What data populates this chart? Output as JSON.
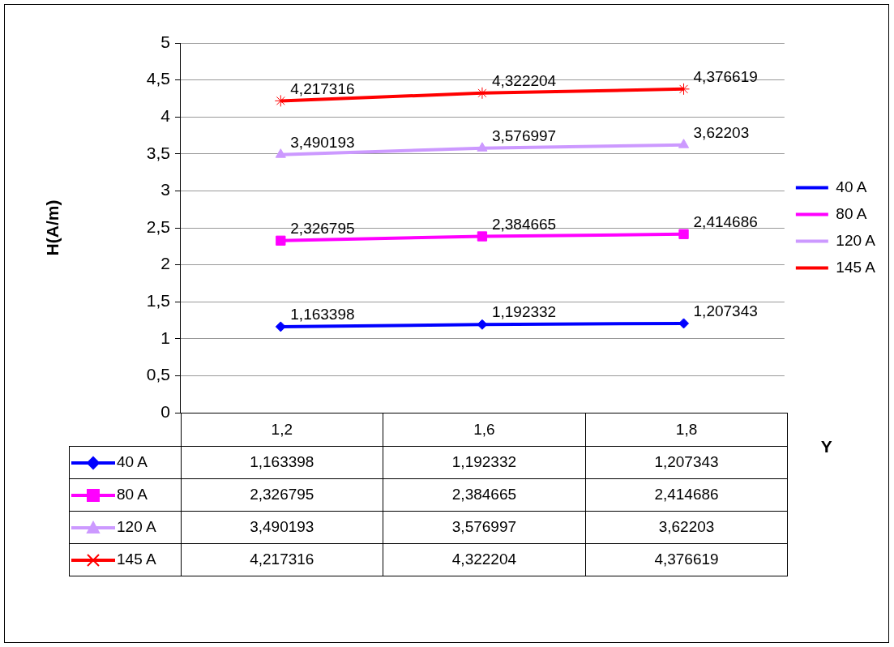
{
  "chart_data": {
    "type": "line",
    "xlabel": "Y",
    "ylabel": "H(A/m)",
    "categories": [
      "1,2",
      "1,6",
      "1,8"
    ],
    "ylim": [
      0,
      5
    ],
    "yticks": [
      0,
      {
        "value": 0.5,
        "label": "0,5"
      },
      1,
      {
        "value": 1.5,
        "label": "1,5"
      },
      2,
      {
        "value": 2.5,
        "label": "2,5"
      },
      3,
      {
        "value": 3.5,
        "label": "3,5"
      },
      4,
      {
        "value": 4.5,
        "label": "4,5"
      },
      5
    ],
    "grid": "y",
    "legend": "right",
    "series": [
      {
        "name": "40 A",
        "color": "#0000ff",
        "marker": "diamond",
        "values": [
          1.163398,
          1.192332,
          1.207343
        ],
        "value_labels": [
          "1,163398",
          "1,192332",
          "1,207343"
        ]
      },
      {
        "name": "80 A",
        "color": "#ff00ff",
        "marker": "square",
        "values": [
          2.326795,
          2.384665,
          2.414686
        ],
        "value_labels": [
          "2,326795",
          "2,384665",
          "2,414686"
        ]
      },
      {
        "name": "120 A",
        "color": "#cc99ff",
        "marker": "triangle",
        "values": [
          3.490193,
          3.576997,
          3.62203
        ],
        "value_labels": [
          "3,490193",
          "3,576997",
          "3,62203"
        ]
      },
      {
        "name": "145 A",
        "color": "#ff0000",
        "marker": "cross",
        "values": [
          4.217316,
          4.322204,
          4.376619
        ],
        "value_labels": [
          "4,217316",
          "4,322204",
          "4,376619"
        ]
      }
    ]
  }
}
